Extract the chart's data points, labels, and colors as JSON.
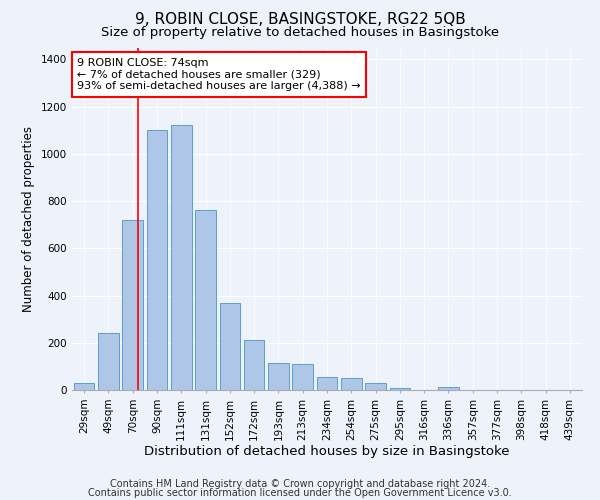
{
  "title": "9, ROBIN CLOSE, BASINGSTOKE, RG22 5QB",
  "subtitle": "Size of property relative to detached houses in Basingstoke",
  "xlabel": "Distribution of detached houses by size in Basingstoke",
  "ylabel": "Number of detached properties",
  "categories": [
    "29sqm",
    "49sqm",
    "70sqm",
    "90sqm",
    "111sqm",
    "131sqm",
    "152sqm",
    "172sqm",
    "193sqm",
    "213sqm",
    "234sqm",
    "254sqm",
    "275sqm",
    "295sqm",
    "316sqm",
    "336sqm",
    "357sqm",
    "377sqm",
    "398sqm",
    "418sqm",
    "439sqm"
  ],
  "values": [
    30,
    240,
    720,
    1100,
    1120,
    760,
    370,
    210,
    115,
    110,
    55,
    50,
    30,
    10,
    0,
    12,
    0,
    0,
    0,
    0,
    0
  ],
  "bar_color": "#aec6e8",
  "bar_edge_color": "#5a9fd4",
  "annotation_box_text": "9 ROBIN CLOSE: 74sqm\n← 7% of detached houses are smaller (329)\n93% of semi-detached houses are larger (4,388) →",
  "annotation_box_color": "white",
  "annotation_box_edge_color": "red",
  "vline_color": "red",
  "ylim": [
    0,
    1450
  ],
  "yticks": [
    0,
    200,
    400,
    600,
    800,
    1000,
    1200,
    1400
  ],
  "footnote1": "Contains HM Land Registry data © Crown copyright and database right 2024.",
  "footnote2": "Contains public sector information licensed under the Open Government Licence v3.0.",
  "bg_color": "#eef2fa",
  "grid_color": "#ffffff",
  "title_fontsize": 11,
  "subtitle_fontsize": 9.5,
  "xlabel_fontsize": 9.5,
  "ylabel_fontsize": 8.5,
  "tick_fontsize": 7.5,
  "footnote_fontsize": 7,
  "annotation_fontsize": 8
}
